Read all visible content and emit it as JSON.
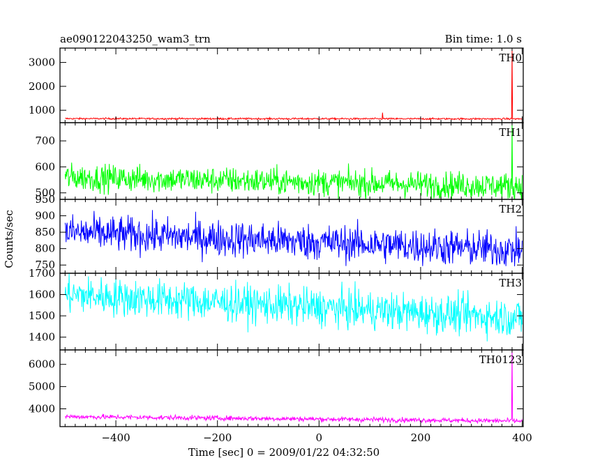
{
  "chart_data": {
    "type": "line",
    "title": "ae090122043250_wam3_trn",
    "bin_time_label": "Bin time: 1.0 s",
    "xlabel": "Time [sec] 0 = 2009/01/22 04:32:50",
    "ylabel": "Counts/sec",
    "xlim": [
      -510,
      402
    ],
    "x_ticks": [
      -400,
      -200,
      0,
      200,
      400
    ],
    "x_range": [
      -500,
      400
    ],
    "series": [
      {
        "name": "TH0",
        "color": "#ff0000",
        "ylim": [
          480,
          3600
        ],
        "y_ticks": [
          1000,
          2000,
          3000
        ],
        "baseline_start": 650,
        "baseline_end": 640,
        "noise": 18,
        "spikes": [
          {
            "x": 125,
            "value": 900
          },
          {
            "x": 380,
            "value": 3600
          }
        ]
      },
      {
        "name": "TH1",
        "color": "#00ff00",
        "ylim": [
          475,
          770
        ],
        "y_ticks": [
          500,
          600,
          700
        ],
        "baseline_start": 560,
        "baseline_end": 525,
        "noise": 26,
        "spikes": [
          {
            "x": 380,
            "value": 770
          }
        ]
      },
      {
        "name": "TH2",
        "color": "#0000ff",
        "ylim": [
          725,
          950
        ],
        "y_ticks": [
          750,
          800,
          850,
          900,
          950
        ],
        "baseline_start": 850,
        "baseline_end": 795,
        "noise": 28,
        "spikes": []
      },
      {
        "name": "TH3",
        "color": "#00ffff",
        "ylim": [
          1340,
          1700
        ],
        "y_ticks": [
          1400,
          1500,
          1600,
          1700
        ],
        "baseline_start": 1600,
        "baseline_end": 1490,
        "noise": 45,
        "spikes": []
      },
      {
        "name": "TH0123",
        "color": "#ff00ff",
        "ylim": [
          3200,
          6650
        ],
        "y_ticks": [
          4000,
          5000,
          6000
        ],
        "baseline_start": 3650,
        "baseline_end": 3450,
        "noise": 55,
        "spikes": [
          {
            "x": 380,
            "value": 6650
          }
        ]
      }
    ]
  }
}
